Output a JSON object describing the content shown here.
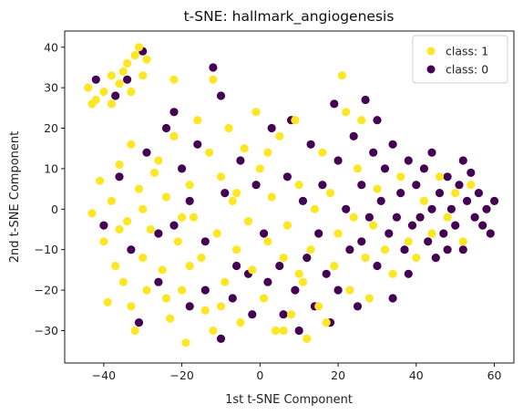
{
  "chart_data": {
    "type": "scatter",
    "title": "t-SNE: hallmark_angiogenesis",
    "xlabel": "1st t-SNE Component",
    "ylabel": "2nd t-SNE Component",
    "xlim": [
      -50,
      65
    ],
    "ylim": [
      -38,
      44
    ],
    "xticks": [
      -40,
      -20,
      0,
      20,
      40,
      60
    ],
    "yticks": [
      -30,
      -20,
      -10,
      0,
      10,
      20,
      30,
      40
    ],
    "grid": false,
    "legend_position": "top-right",
    "series": [
      {
        "name": "class: 1",
        "color": "#fde725",
        "points": [
          [
            -44,
            30
          ],
          [
            -42,
            27
          ],
          [
            -40,
            29
          ],
          [
            -38,
            26
          ],
          [
            -36,
            31
          ],
          [
            -34,
            36
          ],
          [
            -32,
            38
          ],
          [
            -30,
            33
          ],
          [
            -33,
            29
          ],
          [
            -35,
            34
          ],
          [
            -31,
            40
          ],
          [
            -29,
            37
          ],
          [
            -38,
            33
          ],
          [
            -43,
            26
          ],
          [
            -22,
            32
          ],
          [
            -12,
            32
          ],
          [
            -41,
            7
          ],
          [
            -43,
            -1
          ],
          [
            -40,
            -8
          ],
          [
            -38,
            2
          ],
          [
            -36,
            -5
          ],
          [
            -35,
            -18
          ],
          [
            -33,
            -24
          ],
          [
            -32,
            -30
          ],
          [
            -30,
            -12
          ],
          [
            -34,
            -3
          ],
          [
            -31,
            5
          ],
          [
            -29,
            -20
          ],
          [
            -37,
            -14
          ],
          [
            -39,
            -23
          ],
          [
            -36,
            11
          ],
          [
            -33,
            16
          ],
          [
            -28,
            -5
          ],
          [
            -27,
            9
          ],
          [
            -25,
            -15
          ],
          [
            -24,
            3
          ],
          [
            -23,
            -27
          ],
          [
            -22,
            18
          ],
          [
            -21,
            -8
          ],
          [
            -20,
            -20
          ],
          [
            -19,
            -33
          ],
          [
            -18,
            6
          ],
          [
            -17,
            -2
          ],
          [
            -16,
            22
          ],
          [
            -15,
            -12
          ],
          [
            -14,
            -25
          ],
          [
            -13,
            14
          ],
          [
            -12,
            -30
          ],
          [
            -11,
            -6
          ],
          [
            -10,
            8
          ],
          [
            -9,
            -18
          ],
          [
            -8,
            20
          ],
          [
            -7,
            2
          ],
          [
            -6,
            -10
          ],
          [
            -5,
            -28
          ],
          [
            -4,
            15
          ],
          [
            -3,
            -3
          ],
          [
            -2,
            -15
          ],
          [
            -1,
            24
          ],
          [
            0,
            10
          ],
          [
            1,
            -22
          ],
          [
            2,
            -8
          ],
          [
            3,
            3
          ],
          [
            4,
            -30
          ],
          [
            5,
            18
          ],
          [
            6,
            -12
          ],
          [
            7,
            -4
          ],
          [
            8,
            -26
          ],
          [
            9,
            22
          ],
          [
            10,
            6
          ],
          [
            11,
            -18
          ],
          [
            12,
            -32
          ],
          [
            13,
            -10
          ],
          [
            14,
            0
          ],
          [
            15,
            -24
          ],
          [
            16,
            14
          ],
          [
            17,
            -28
          ],
          [
            18,
            4
          ],
          [
            19,
            -14
          ],
          [
            20,
            -6
          ],
          [
            21,
            33
          ],
          [
            22,
            24
          ],
          [
            23,
            -20
          ],
          [
            24,
            -2
          ],
          [
            25,
            10
          ],
          [
            26,
            22
          ],
          [
            27,
            -12
          ],
          [
            28,
            -22
          ],
          [
            29,
            -4
          ],
          [
            30,
            5
          ],
          [
            32,
            -10
          ],
          [
            34,
            -16
          ],
          [
            36,
            8
          ],
          [
            38,
            -8
          ],
          [
            40,
            -12
          ],
          [
            42,
            2
          ],
          [
            44,
            -6
          ],
          [
            46,
            8
          ],
          [
            48,
            -2
          ],
          [
            50,
            4
          ],
          [
            52,
            -8
          ],
          [
            54,
            6
          ],
          [
            -24,
            -22
          ],
          [
            -26,
            12
          ],
          [
            -18,
            -14
          ],
          [
            -10,
            -24
          ],
          [
            -6,
            4
          ],
          [
            2,
            14
          ],
          [
            6,
            -30
          ],
          [
            10,
            -16
          ],
          [
            -30,
            0
          ],
          [
            -20,
            -2
          ]
        ]
      },
      {
        "name": "class: 0",
        "color": "#440154",
        "points": [
          [
            -42,
            32
          ],
          [
            -37,
            28
          ],
          [
            -34,
            32
          ],
          [
            -30,
            39
          ],
          [
            -40,
            -4
          ],
          [
            -36,
            8
          ],
          [
            -33,
            -10
          ],
          [
            -31,
            -28
          ],
          [
            -29,
            14
          ],
          [
            -26,
            -18
          ],
          [
            -24,
            20
          ],
          [
            -22,
            -4
          ],
          [
            -20,
            10
          ],
          [
            -18,
            -24
          ],
          [
            -16,
            16
          ],
          [
            -14,
            -8
          ],
          [
            -12,
            35
          ],
          [
            -10,
            28
          ],
          [
            -9,
            4
          ],
          [
            -7,
            -22
          ],
          [
            -5,
            12
          ],
          [
            -3,
            -16
          ],
          [
            -1,
            6
          ],
          [
            1,
            -6
          ],
          [
            3,
            20
          ],
          [
            5,
            -14
          ],
          [
            7,
            8
          ],
          [
            9,
            -20
          ],
          [
            11,
            2
          ],
          [
            13,
            16
          ],
          [
            15,
            -6
          ],
          [
            17,
            -16
          ],
          [
            19,
            26
          ],
          [
            20,
            12
          ],
          [
            22,
            0
          ],
          [
            23,
            -10
          ],
          [
            24,
            18
          ],
          [
            25,
            -24
          ],
          [
            26,
            6
          ],
          [
            27,
            27
          ],
          [
            28,
            -2
          ],
          [
            29,
            14
          ],
          [
            30,
            -14
          ],
          [
            31,
            2
          ],
          [
            32,
            10
          ],
          [
            33,
            -6
          ],
          [
            34,
            16
          ],
          [
            35,
            -2
          ],
          [
            36,
            4
          ],
          [
            37,
            -10
          ],
          [
            38,
            12
          ],
          [
            39,
            -4
          ],
          [
            40,
            6
          ],
          [
            41,
            -2
          ],
          [
            42,
            10
          ],
          [
            43,
            -8
          ],
          [
            44,
            0
          ],
          [
            45,
            -12
          ],
          [
            46,
            4
          ],
          [
            47,
            -6
          ],
          [
            48,
            8
          ],
          [
            49,
            0
          ],
          [
            50,
            -4
          ],
          [
            51,
            6
          ],
          [
            52,
            -10
          ],
          [
            53,
            2
          ],
          [
            54,
            9
          ],
          [
            55,
            -2
          ],
          [
            56,
            4
          ],
          [
            57,
            -4
          ],
          [
            58,
            0
          ],
          [
            59,
            -6
          ],
          [
            60,
            2
          ],
          [
            48,
            -10
          ],
          [
            44,
            14
          ],
          [
            52,
            12
          ],
          [
            38,
            -16
          ],
          [
            34,
            -22
          ],
          [
            30,
            22
          ],
          [
            26,
            -8
          ],
          [
            18,
            -28
          ],
          [
            14,
            -24
          ],
          [
            10,
            -30
          ],
          [
            6,
            -26
          ],
          [
            2,
            -18
          ],
          [
            -2,
            -26
          ],
          [
            -6,
            -14
          ],
          [
            -10,
            -32
          ],
          [
            -14,
            -20
          ],
          [
            -18,
            2
          ],
          [
            -22,
            24
          ],
          [
            -26,
            -6
          ],
          [
            8,
            22
          ],
          [
            12,
            -12
          ],
          [
            16,
            6
          ],
          [
            20,
            -20
          ]
        ]
      }
    ]
  }
}
